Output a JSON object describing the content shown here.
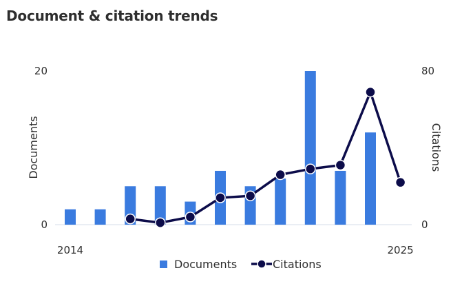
{
  "title": "Document & citation trends",
  "chart_data": {
    "type": "bar+line",
    "x": [
      2014,
      2015,
      2016,
      2017,
      2018,
      2019,
      2020,
      2021,
      2022,
      2023,
      2024,
      2025
    ],
    "x_tick_labels": [
      "2014",
      "2025"
    ],
    "series": [
      {
        "name": "Documents",
        "type": "bar",
        "axis": "left",
        "values": [
          2,
          2,
          5,
          5,
          3,
          7,
          5,
          6,
          20,
          7,
          12,
          null
        ],
        "color": "#3a7bdf"
      },
      {
        "name": "Citations",
        "type": "line",
        "axis": "right",
        "values": [
          null,
          null,
          3,
          1,
          4,
          14,
          15,
          26,
          29,
          31,
          69,
          22
        ],
        "color": "#0c0c4a"
      }
    ],
    "y_left": {
      "label": "Documents",
      "range": [
        0,
        20
      ],
      "ticks": [
        "0",
        "20"
      ]
    },
    "y_right": {
      "label": "Citations",
      "range": [
        0,
        80
      ],
      "ticks": [
        "0",
        "80"
      ]
    },
    "legend_position": "bottom",
    "grid": false
  }
}
